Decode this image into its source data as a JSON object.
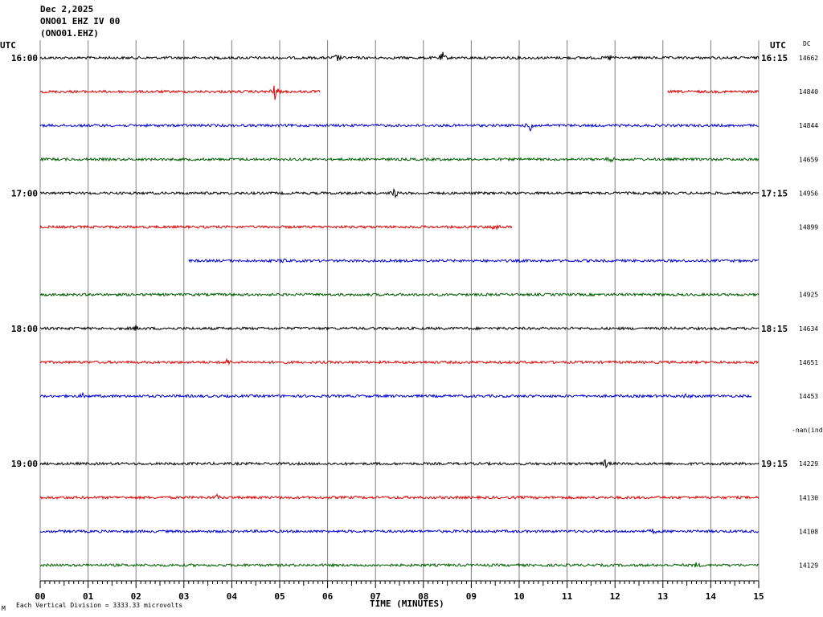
{
  "header": {
    "date": "Dec 2,2025",
    "station": "ONO01 EHZ IV 00",
    "channel": "(ONO01.EHZ)"
  },
  "left_utc_label": "UTC",
  "right_utc_label": "UTC",
  "dc_label": "DC",
  "footer": {
    "scale_note": "Each Vertical Division = 3333.33 microvolts",
    "corner_mark": "M"
  },
  "chart_data": {
    "type": "line",
    "xlabel": "TIME (MINUTES)",
    "xlim": [
      0,
      15
    ],
    "x_ticks": [
      "00",
      "01",
      "02",
      "03",
      "04",
      "05",
      "06",
      "07",
      "08",
      "09",
      "10",
      "11",
      "12",
      "13",
      "14",
      "15"
    ],
    "grid": true,
    "series_colors": [
      "#000000",
      "#e00000",
      "#0000d0",
      "#006000"
    ],
    "rows": [
      {
        "left": "16:00",
        "right": "16:15",
        "dc": "14662",
        "color": "#000000",
        "start": 0,
        "end": 15,
        "events": [
          {
            "t": 6.2,
            "a": 5
          },
          {
            "t": 8.4,
            "a": 7
          },
          {
            "t": 11.9,
            "a": 3
          }
        ]
      },
      {
        "left": "",
        "right": "",
        "dc": "14840",
        "color": "#e00000",
        "start": 0,
        "end": 5.85,
        "start2": 13.1,
        "end2": 15,
        "events": [
          {
            "t": 4.9,
            "a": 11
          }
        ]
      },
      {
        "left": "",
        "right": "",
        "dc": "14844",
        "color": "#0000d0",
        "start": 0,
        "end": 15,
        "events": [
          {
            "t": 10.25,
            "a": 10
          }
        ]
      },
      {
        "left": "",
        "right": "",
        "dc": "14659",
        "color": "#006000",
        "start": 0,
        "end": 15,
        "events": [
          {
            "t": 11.9,
            "a": 3
          }
        ]
      },
      {
        "left": "17:00",
        "right": "17:15",
        "dc": "14956",
        "color": "#000000",
        "start": 0,
        "end": 15,
        "events": [
          {
            "t": 7.4,
            "a": 6
          }
        ]
      },
      {
        "left": "",
        "right": "",
        "dc": "14899",
        "color": "#e00000",
        "start": 0,
        "end": 9.85,
        "events": [
          {
            "t": 9.5,
            "a": 6
          }
        ]
      },
      {
        "left": "",
        "right": "",
        "dc": "",
        "color": "#0000d0",
        "start": 3.1,
        "end": 15,
        "events": [
          {
            "t": 5.1,
            "a": 3
          }
        ]
      },
      {
        "left": "",
        "right": "",
        "dc": "14925",
        "color": "#006000",
        "start": 0,
        "end": 15,
        "events": []
      },
      {
        "left": "18:00",
        "right": "18:15",
        "dc": "14634",
        "color": "#000000",
        "start": 0,
        "end": 15,
        "events": [
          {
            "t": 2.0,
            "a": 3
          }
        ]
      },
      {
        "left": "",
        "right": "",
        "dc": "14651",
        "color": "#e00000",
        "start": 0,
        "end": 15,
        "events": [
          {
            "t": 3.9,
            "a": 4
          }
        ]
      },
      {
        "left": "",
        "right": "",
        "dc": "14453",
        "color": "#0000d0",
        "start": 0,
        "end": 14.85,
        "events": [
          {
            "t": 0.9,
            "a": 3
          },
          {
            "t": 13.5,
            "a": 3
          }
        ]
      },
      {
        "left": "",
        "right": "",
        "dc": "-nan(ind",
        "color": "#000000",
        "start": 0,
        "end": 0,
        "events": []
      },
      {
        "left": "19:00",
        "right": "19:15",
        "dc": "14229",
        "color": "#000000",
        "start": 0,
        "end": 15,
        "events": [
          {
            "t": 11.8,
            "a": 5
          }
        ]
      },
      {
        "left": "",
        "right": "",
        "dc": "14130",
        "color": "#e00000",
        "start": 0,
        "end": 15,
        "events": [
          {
            "t": 3.7,
            "a": 3
          }
        ]
      },
      {
        "left": "",
        "right": "",
        "dc": "14108",
        "color": "#0000d0",
        "start": 0,
        "end": 15,
        "events": [
          {
            "t": 12.8,
            "a": 3
          }
        ]
      },
      {
        "left": "",
        "right": "",
        "dc": "14129",
        "color": "#006000",
        "start": 0,
        "end": 15,
        "events": [
          {
            "t": 13.7,
            "a": 3
          }
        ]
      }
    ]
  }
}
